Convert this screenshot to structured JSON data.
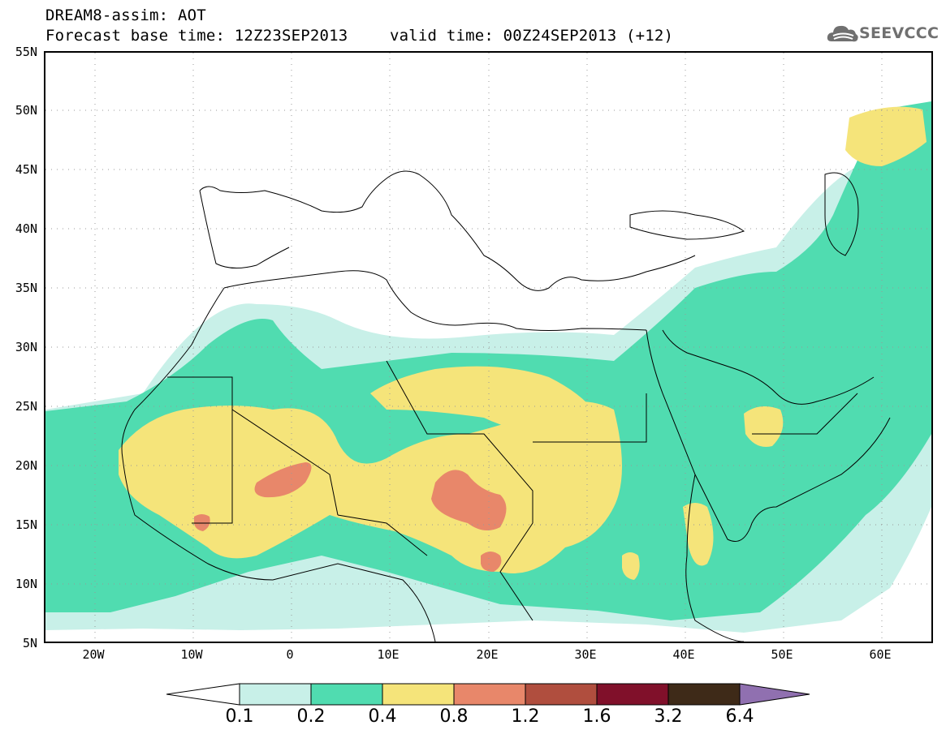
{
  "header": {
    "line1": "DREAM8-assim: AOT",
    "line2": "Forecast base time: 12Z23SEP2013",
    "line3": "valid time: 00Z24SEP2013 (+12)"
  },
  "logo": {
    "text": "SEEVCCC",
    "icon": "cloud-icon"
  },
  "map": {
    "lon_range": [
      -25,
      65
    ],
    "lat_range": [
      5,
      55
    ],
    "y_labels": [
      "55N",
      "50N",
      "45N",
      "40N",
      "35N",
      "30N",
      "25N",
      "20N",
      "15N",
      "10N",
      "5N"
    ],
    "x_labels": [
      "20W",
      "10W",
      "0",
      "10E",
      "20E",
      "30E",
      "40E",
      "50E",
      "60E"
    ]
  },
  "colorbar": {
    "labels": [
      "0.1",
      "0.2",
      "0.4",
      "0.8",
      "1.2",
      "1.6",
      "3.2",
      "6.4"
    ],
    "colors": [
      "#ffffff",
      "#c8f0e8",
      "#50dcb0",
      "#f5e47a",
      "#e8876a",
      "#b04e3e",
      "#80102a",
      "#3e2a18",
      "#9070b0"
    ]
  }
}
